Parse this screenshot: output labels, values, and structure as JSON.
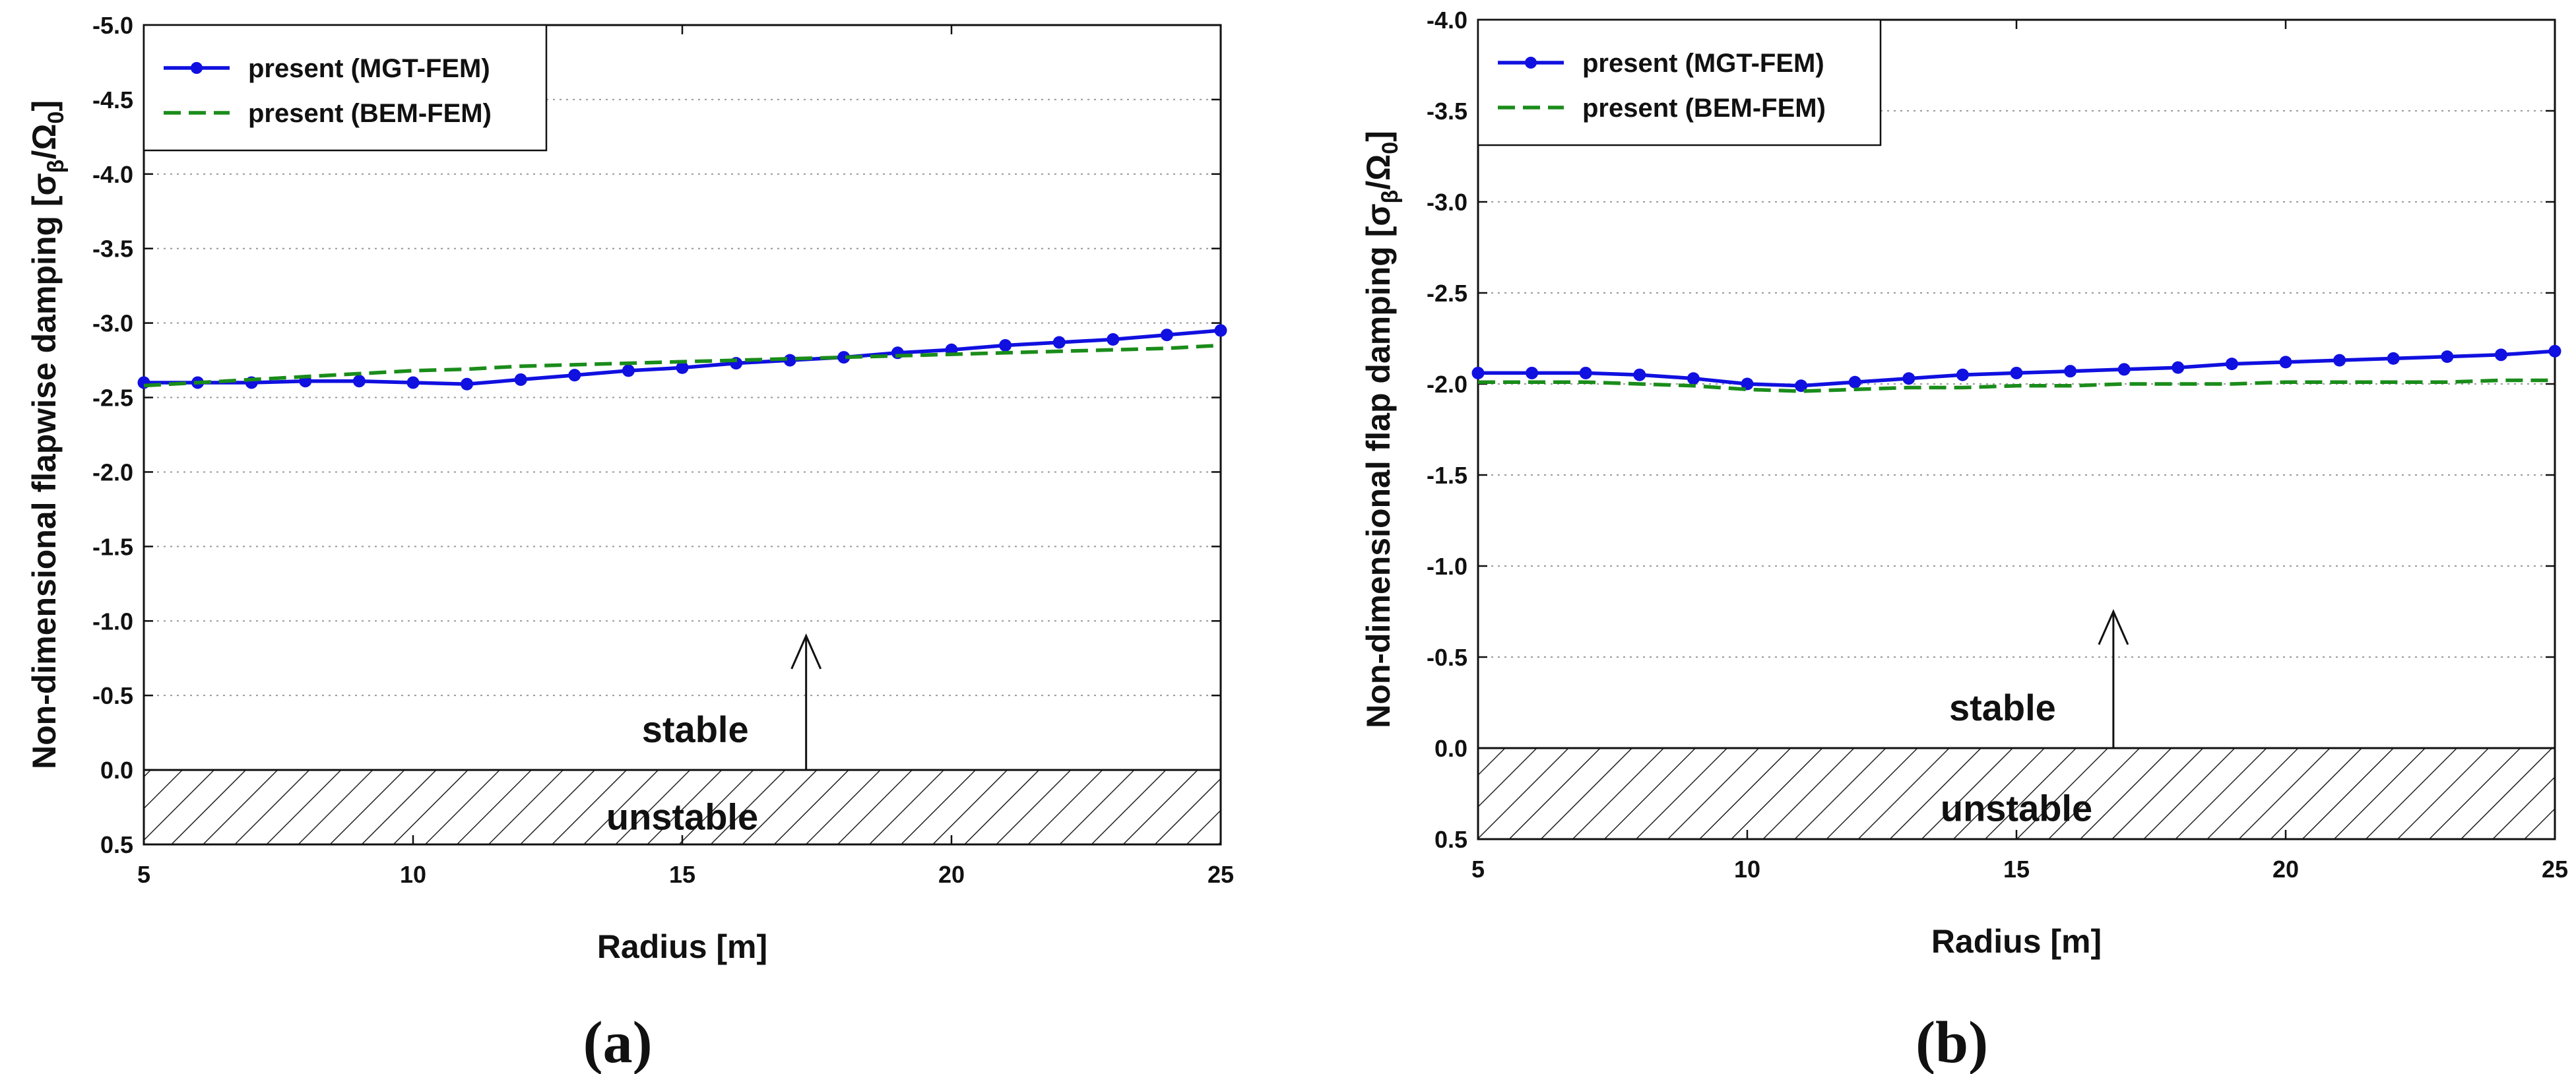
{
  "colors": {
    "mgt": "#1010e0",
    "bem": "#1a8c1a",
    "grid": "#999999",
    "frame": "#111111"
  },
  "chart_data": [
    {
      "type": "line",
      "panel_label": "(a)",
      "xlabel": "Radius [m]",
      "ylabel": "Non-dimensional flapwise damping [σβ/Ω0]",
      "ylabel_parts": {
        "main": "Non-dimensional flapwise damping [σ",
        "sub1": "β",
        "mid": "/Ω",
        "sub2": "0",
        "end": "]"
      },
      "xlim": [
        5,
        25
      ],
      "ylim": [
        0.5,
        -5.0
      ],
      "xticks": [
        5,
        10,
        15,
        20,
        25
      ],
      "xtick_labels": [
        "5",
        "10",
        "15",
        "20",
        "25"
      ],
      "yticks": [
        0.5,
        0.0,
        -0.5,
        -1.0,
        -1.5,
        -2.0,
        -2.5,
        -3.0,
        -3.5,
        -4.0,
        -4.5,
        -5.0
      ],
      "ytick_labels": [
        "0.5",
        "0.0",
        "-0.5",
        "-1.0",
        "-1.5",
        "-2.0",
        "-2.5",
        "-3.0",
        "-3.5",
        "-4.0",
        "-4.5",
        "-5.0"
      ],
      "grid": "horizontal-dotted",
      "legend": "top-left",
      "stable_label": "stable",
      "unstable_label": "unstable",
      "arrow": {
        "x": 17.3,
        "from": 0.0,
        "to": -0.9
      },
      "series": [
        {
          "name": "present (MGT-FEM)",
          "style": "solid-markers",
          "x": [
            5,
            6,
            7,
            8,
            9,
            10,
            11,
            12,
            13,
            14,
            15,
            16,
            17,
            18,
            19,
            20,
            21,
            22,
            23,
            24,
            25
          ],
          "values": [
            -2.6,
            -2.6,
            -2.6,
            -2.61,
            -2.61,
            -2.6,
            -2.59,
            -2.62,
            -2.65,
            -2.68,
            -2.7,
            -2.73,
            -2.75,
            -2.77,
            -2.8,
            -2.82,
            -2.85,
            -2.87,
            -2.89,
            -2.92,
            -2.95
          ]
        },
        {
          "name": "present (BEM-FEM)",
          "style": "dashed",
          "x": [
            5,
            6,
            7,
            8,
            9,
            10,
            11,
            12,
            13,
            14,
            15,
            16,
            17,
            18,
            19,
            20,
            21,
            22,
            23,
            24,
            25
          ],
          "values": [
            -2.58,
            -2.6,
            -2.62,
            -2.64,
            -2.66,
            -2.68,
            -2.69,
            -2.71,
            -2.72,
            -2.73,
            -2.74,
            -2.75,
            -2.76,
            -2.77,
            -2.78,
            -2.79,
            -2.8,
            -2.81,
            -2.82,
            -2.83,
            -2.85
          ]
        }
      ]
    },
    {
      "type": "line",
      "panel_label": "(b)",
      "xlabel": "Radius [m]",
      "ylabel": "Non-dimensional flap damping [σβ/Ω0]",
      "ylabel_parts": {
        "main": "Non-dimensional flap damping [σ",
        "sub1": "β",
        "mid": "/Ω",
        "sub2": "0",
        "end": "]"
      },
      "xlim": [
        5,
        25
      ],
      "ylim": [
        0.5,
        -4.0
      ],
      "xticks": [
        5,
        10,
        15,
        20,
        25
      ],
      "xtick_labels": [
        "5",
        "10",
        "15",
        "20",
        "25"
      ],
      "yticks": [
        0.5,
        0.0,
        -0.5,
        -1.0,
        -1.5,
        -2.0,
        -2.5,
        -3.0,
        -3.5,
        -4.0
      ],
      "ytick_labels": [
        "0.5",
        "0.0",
        "-0.5",
        "-1.0",
        "-1.5",
        "-2.0",
        "-2.5",
        "-3.0",
        "-3.5",
        "-4.0"
      ],
      "grid": "horizontal-dotted",
      "legend": "top-left",
      "stable_label": "stable",
      "unstable_label": "unstable",
      "arrow": {
        "x": 16.8,
        "from": 0.0,
        "to": -0.75
      },
      "series": [
        {
          "name": "present (MGT-FEM)",
          "style": "solid-markers",
          "x": [
            5,
            6,
            7,
            8,
            9,
            10,
            11,
            12,
            13,
            14,
            15,
            16,
            17,
            18,
            19,
            20,
            21,
            22,
            23,
            24,
            25
          ],
          "values": [
            -2.06,
            -2.06,
            -2.06,
            -2.05,
            -2.03,
            -2.0,
            -1.99,
            -2.01,
            -2.03,
            -2.05,
            -2.06,
            -2.07,
            -2.08,
            -2.09,
            -2.11,
            -2.12,
            -2.13,
            -2.14,
            -2.15,
            -2.16,
            -2.18
          ]
        },
        {
          "name": "present (BEM-FEM)",
          "style": "dashed",
          "x": [
            5,
            6,
            7,
            8,
            9,
            10,
            11,
            12,
            13,
            14,
            15,
            16,
            17,
            18,
            19,
            20,
            21,
            22,
            23,
            24,
            25
          ],
          "values": [
            -2.01,
            -2.01,
            -2.01,
            -2.0,
            -1.99,
            -1.97,
            -1.96,
            -1.97,
            -1.98,
            -1.98,
            -1.99,
            -1.99,
            -2.0,
            -2.0,
            -2.0,
            -2.01,
            -2.01,
            -2.01,
            -2.01,
            -2.02,
            -2.02
          ]
        }
      ]
    }
  ]
}
